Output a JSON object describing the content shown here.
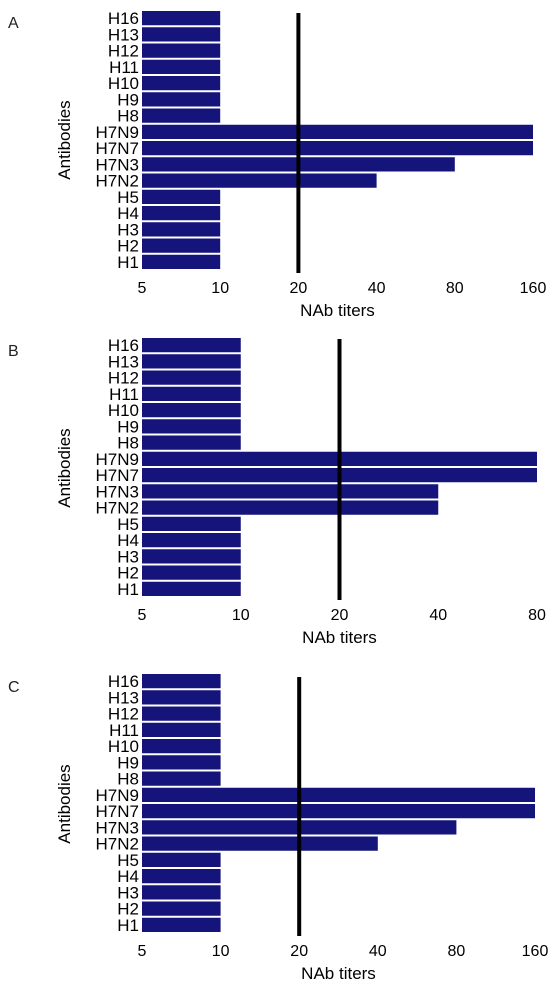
{
  "figure": {
    "bar_color": "#14147a",
    "ref_line_color": "#000000"
  },
  "chart_data": [
    {
      "panel": "A",
      "type": "bar",
      "orientation": "horizontal",
      "x_scale": "log2",
      "xlabel": "NAb titers",
      "ylabel": "Antibodies",
      "xlim": [
        5,
        160
      ],
      "xticks": [
        5,
        10,
        20,
        40,
        80,
        160
      ],
      "reference_line": 20,
      "categories": [
        "H16",
        "H13",
        "H12",
        "H11",
        "H10",
        "H9",
        "H8",
        "H7N9",
        "H7N7",
        "H7N3",
        "H7N2",
        "H5",
        "H4",
        "H3",
        "H2",
        "H1"
      ],
      "values": [
        10,
        10,
        10,
        10,
        10,
        10,
        10,
        160,
        160,
        80,
        40,
        10,
        10,
        10,
        10,
        10
      ]
    },
    {
      "panel": "B",
      "type": "bar",
      "orientation": "horizontal",
      "x_scale": "log2",
      "xlabel": "NAb titers",
      "ylabel": "Antibodies",
      "xlim": [
        5,
        80
      ],
      "xticks": [
        5,
        10,
        20,
        40,
        80
      ],
      "reference_line": 20,
      "categories": [
        "H16",
        "H13",
        "H12",
        "H11",
        "H10",
        "H9",
        "H8",
        "H7N9",
        "H7N7",
        "H7N3",
        "H7N2",
        "H5",
        "H4",
        "H3",
        "H2",
        "H1"
      ],
      "values": [
        10,
        10,
        10,
        10,
        10,
        10,
        10,
        80,
        80,
        40,
        40,
        10,
        10,
        10,
        10,
        10
      ]
    },
    {
      "panel": "C",
      "type": "bar",
      "orientation": "horizontal",
      "x_scale": "log2",
      "xlabel": "NAb titers",
      "ylabel": "Antibodies",
      "xlim": [
        5,
        160
      ],
      "xticks": [
        5,
        10,
        20,
        40,
        80,
        160
      ],
      "reference_line": 20,
      "categories": [
        "H16",
        "H13",
        "H12",
        "H11",
        "H10",
        "H9",
        "H8",
        "H7N9",
        "H7N7",
        "H7N3",
        "H7N2",
        "H5",
        "H4",
        "H3",
        "H2",
        "H1"
      ],
      "values": [
        10,
        10,
        10,
        10,
        10,
        10,
        10,
        160,
        160,
        80,
        40,
        10,
        10,
        10,
        10,
        10
      ]
    }
  ]
}
